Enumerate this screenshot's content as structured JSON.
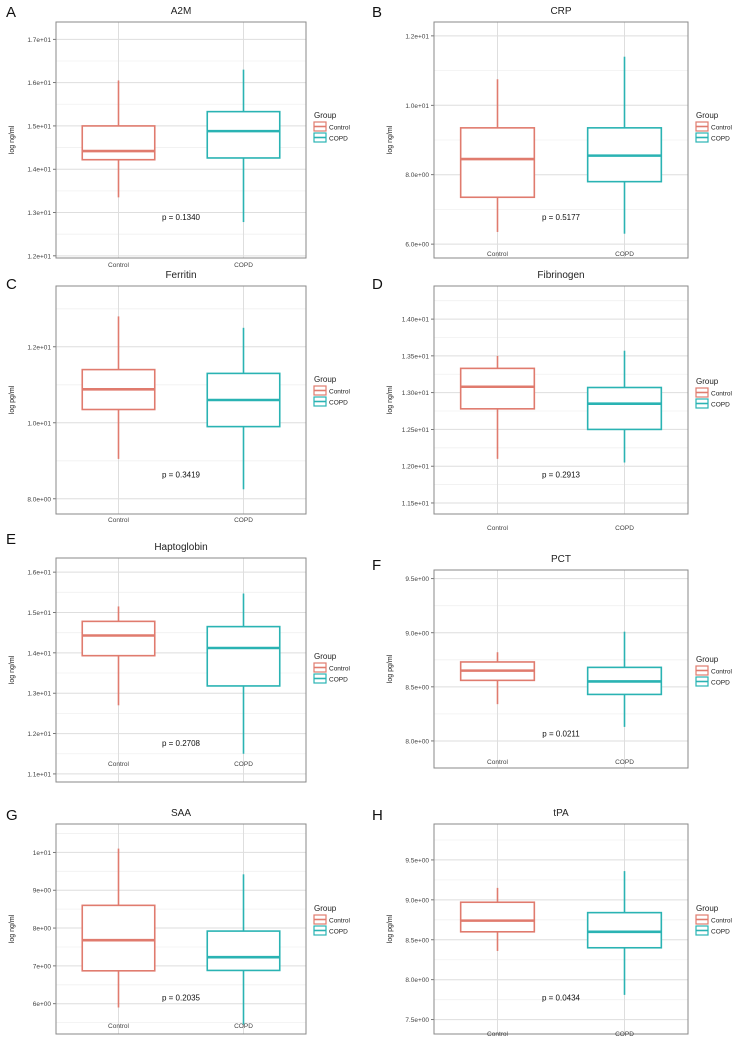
{
  "figure": {
    "legend_title": "Group",
    "colors": {
      "Control": "#e07b6e",
      "COPD": "#2ab3b3",
      "grid_major": "#dedede",
      "grid_minor": "#f0f0f0",
      "frame": "#8a8a8a"
    }
  },
  "chart_data": [
    {
      "panel": "A",
      "title": "A2M",
      "type": "boxplot",
      "ylabel": "log ng/ml",
      "categories": [
        "Control",
        "COPD"
      ],
      "ylim": [
        11.95,
        17.4
      ],
      "yticks": [
        12,
        13,
        14,
        15,
        16,
        17
      ],
      "ytick_labels": [
        "1.2e+01",
        "1.3e+01",
        "1.4e+01",
        "1.5e+01",
        "1.6e+01",
        "1.7e+01"
      ],
      "series": [
        {
          "name": "Control",
          "min": 13.35,
          "q1": 14.22,
          "median": 14.42,
          "q3": 15.0,
          "max": 16.05
        },
        {
          "name": "COPD",
          "min": 12.78,
          "q1": 14.26,
          "median": 14.88,
          "q3": 15.33,
          "max": 16.3
        }
      ],
      "annotation": "p = 0.1340",
      "legend": [
        "Control",
        "COPD"
      ]
    },
    {
      "panel": "B",
      "title": "CRP",
      "type": "boxplot",
      "ylabel": "log ng/ml",
      "categories": [
        "Control",
        "COPD"
      ],
      "ylim": [
        5.6,
        12.4
      ],
      "yticks": [
        6,
        8,
        10,
        12
      ],
      "ytick_labels": [
        "6.0e+00",
        "8.0e+00",
        "1.0e+01",
        "1.2e+01"
      ],
      "series": [
        {
          "name": "Control",
          "min": 6.35,
          "q1": 7.35,
          "median": 8.45,
          "q3": 9.35,
          "max": 10.75
        },
        {
          "name": "COPD",
          "min": 6.3,
          "q1": 7.8,
          "median": 8.55,
          "q3": 9.35,
          "max": 11.4
        }
      ],
      "annotation": "p = 0.5177",
      "legend": [
        "Control",
        "COPD"
      ]
    },
    {
      "panel": "C",
      "title": "Ferritin",
      "type": "boxplot",
      "ylabel": "log pg/ml",
      "categories": [
        "Control",
        "COPD"
      ],
      "ylim": [
        7.6,
        13.6
      ],
      "yticks": [
        8,
        10,
        12
      ],
      "ytick_labels": [
        "8.0e+00",
        "1.0e+01",
        "1.2e+01"
      ],
      "series": [
        {
          "name": "Control",
          "min": 9.05,
          "q1": 10.35,
          "median": 10.88,
          "q3": 11.4,
          "max": 12.8
        },
        {
          "name": "COPD",
          "min": 8.25,
          "q1": 9.9,
          "median": 10.6,
          "q3": 11.3,
          "max": 12.5
        }
      ],
      "annotation": "p = 0.3419",
      "legend": [
        "Control",
        "COPD"
      ]
    },
    {
      "panel": "D",
      "title": "Fibrinogen",
      "type": "boxplot",
      "ylabel": "log ng/ml",
      "categories": [
        "Control",
        "COPD"
      ],
      "ylim": [
        11.35,
        14.45
      ],
      "yticks": [
        11.5,
        12,
        12.5,
        13,
        13.5,
        14
      ],
      "ytick_labels": [
        "1.15e+01",
        "1.20e+01",
        "1.25e+01",
        "1.30e+01",
        "1.35e+01",
        "1.40e+01"
      ],
      "series": [
        {
          "name": "Control",
          "min": 12.1,
          "q1": 12.78,
          "median": 13.08,
          "q3": 13.33,
          "max": 13.5
        },
        {
          "name": "COPD",
          "min": 12.05,
          "q1": 12.5,
          "median": 12.85,
          "q3": 13.07,
          "max": 13.57
        }
      ],
      "annotation": "p = 0.2913",
      "legend": [
        "Control",
        "COPD"
      ]
    },
    {
      "panel": "E",
      "title": "Haptoglobin",
      "type": "boxplot",
      "ylabel": "log ng/ml",
      "categories": [
        "Control",
        "COPD"
      ],
      "ylim": [
        10.8,
        16.35
      ],
      "yticks": [
        11,
        12,
        13,
        14,
        15,
        16
      ],
      "ytick_labels": [
        "1.1e+01",
        "1.2e+01",
        "1.3e+01",
        "1.4e+01",
        "1.5e+01",
        "1.6e+01"
      ],
      "series": [
        {
          "name": "Control",
          "min": 12.7,
          "q1": 13.93,
          "median": 14.43,
          "q3": 14.78,
          "max": 15.15
        },
        {
          "name": "COPD",
          "min": 11.5,
          "q1": 13.18,
          "median": 14.12,
          "q3": 14.65,
          "max": 15.47
        }
      ],
      "annotation": "p = 0.2708",
      "legend": [
        "Control",
        "COPD"
      ]
    },
    {
      "panel": "F",
      "title": "PCT",
      "type": "boxplot",
      "ylabel": "log pg/ml",
      "categories": [
        "Control",
        "COPD"
      ],
      "ylim": [
        7.75,
        9.58
      ],
      "yticks": [
        8,
        8.5,
        9,
        9.5
      ],
      "ytick_labels": [
        "8.0e+00",
        "8.5e+00",
        "9.0e+00",
        "9.5e+00"
      ],
      "series": [
        {
          "name": "Control",
          "min": 8.34,
          "q1": 8.56,
          "median": 8.65,
          "q3": 8.73,
          "max": 8.82
        },
        {
          "name": "COPD",
          "min": 8.13,
          "q1": 8.43,
          "median": 8.55,
          "q3": 8.68,
          "max": 9.01
        }
      ],
      "annotation": "p = 0.0211",
      "legend": [
        "Control",
        "COPD"
      ]
    },
    {
      "panel": "G",
      "title": "SAA",
      "type": "boxplot",
      "ylabel": "log ng/ml",
      "categories": [
        "Control",
        "COPD"
      ],
      "ylim": [
        5.2,
        10.75
      ],
      "yticks": [
        6,
        7,
        8,
        9,
        10
      ],
      "ytick_labels": [
        "6e+00",
        "7e+00",
        "8e+00",
        "9e+00",
        "1e+01"
      ],
      "series": [
        {
          "name": "Control",
          "min": 5.9,
          "q1": 6.87,
          "median": 7.68,
          "q3": 8.6,
          "max": 10.1
        },
        {
          "name": "COPD",
          "min": 5.45,
          "q1": 6.88,
          "median": 7.23,
          "q3": 7.92,
          "max": 9.42
        }
      ],
      "annotation": "p = 0.2035",
      "legend": [
        "Control",
        "COPD"
      ]
    },
    {
      "panel": "H",
      "title": "tPA",
      "type": "boxplot",
      "ylabel": "log pg/ml",
      "categories": [
        "Control",
        "COPD"
      ],
      "ylim": [
        7.32,
        9.95
      ],
      "yticks": [
        7.5,
        8,
        8.5,
        9,
        9.5
      ],
      "ytick_labels": [
        "7.5e+00",
        "8.0e+00",
        "8.5e+00",
        "9.0e+00",
        "9.5e+00"
      ],
      "series": [
        {
          "name": "Control",
          "min": 8.36,
          "q1": 8.6,
          "median": 8.74,
          "q3": 8.97,
          "max": 9.15
        },
        {
          "name": "COPD",
          "min": 7.81,
          "q1": 8.4,
          "median": 8.6,
          "q3": 8.84,
          "max": 9.36
        }
      ],
      "annotation": "p = 0.0434",
      "legend": [
        "Control",
        "COPD"
      ]
    }
  ]
}
